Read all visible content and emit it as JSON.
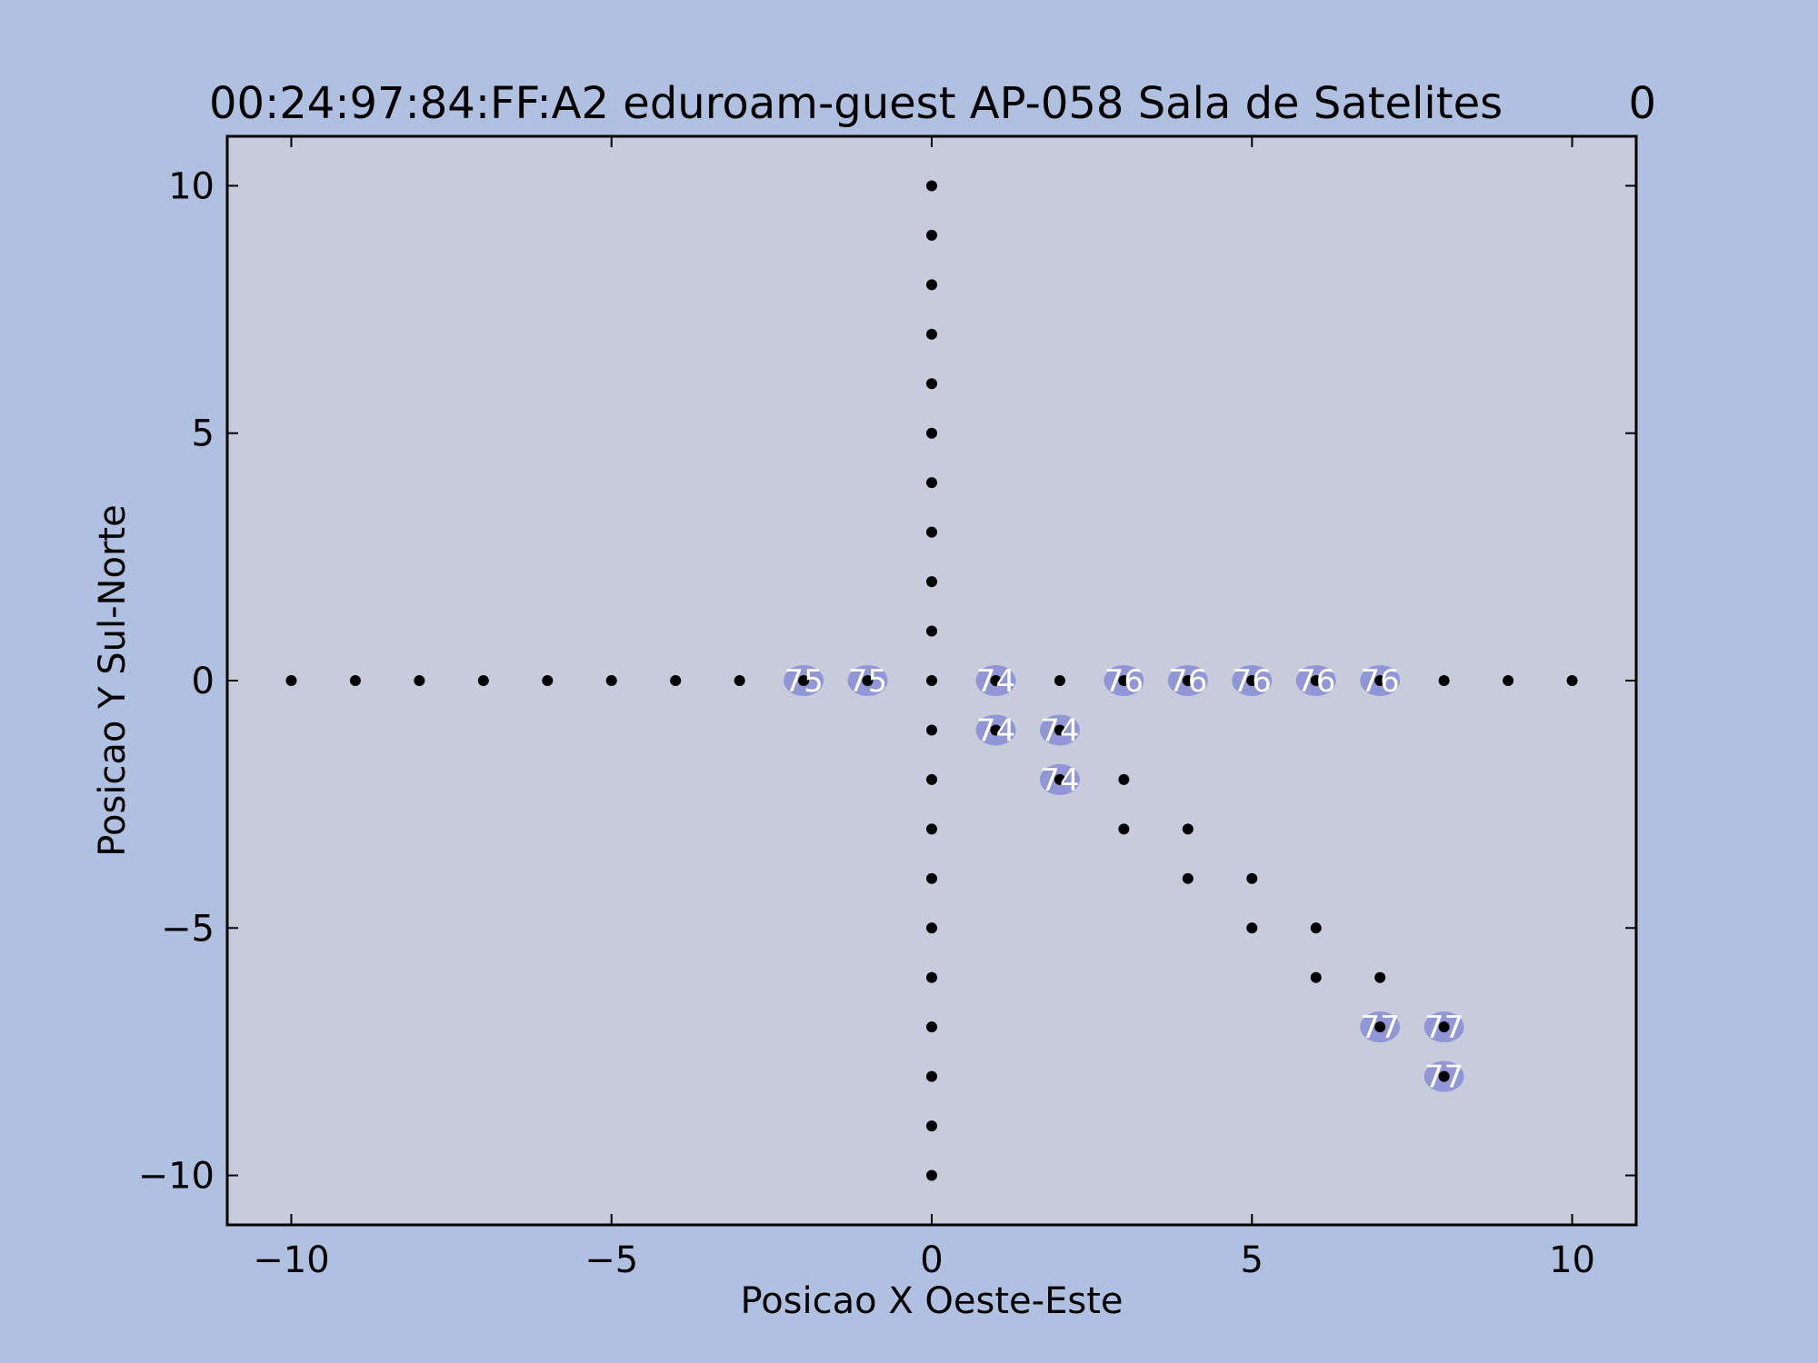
{
  "chart_data": {
    "type": "scatter",
    "title": "00:24:97:84:FF:A2 eduroam-guest AP-058 Sala de Satelites",
    "title_right": "0",
    "xlabel": "Posicao X Oeste-Este",
    "ylabel": "Posicao Y Sul-Norte",
    "xlim": [
      -11,
      11
    ],
    "ylim": [
      -11,
      11
    ],
    "xticks": [
      -10,
      -5,
      0,
      5,
      10
    ],
    "yticks": [
      -10,
      -5,
      0,
      5,
      10
    ],
    "xtick_labels": [
      "−10",
      "−5",
      "0",
      "5",
      "10"
    ],
    "ytick_labels": [
      "−10",
      "−5",
      "0",
      "5",
      "10"
    ],
    "grid": false,
    "plot_background": "#c8cbdc",
    "figure_background": "#b0c0e0",
    "point_color": "#000000",
    "highlight_color": "#7f84d6",
    "points": [
      [
        -10,
        0
      ],
      [
        -9,
        0
      ],
      [
        -8,
        0
      ],
      [
        -7,
        0
      ],
      [
        -6,
        0
      ],
      [
        -5,
        0
      ],
      [
        -4,
        0
      ],
      [
        -3,
        0
      ],
      [
        -2,
        0
      ],
      [
        -1,
        0
      ],
      [
        0,
        0
      ],
      [
        1,
        0
      ],
      [
        2,
        0
      ],
      [
        3,
        0
      ],
      [
        4,
        0
      ],
      [
        5,
        0
      ],
      [
        6,
        0
      ],
      [
        7,
        0
      ],
      [
        8,
        0
      ],
      [
        9,
        0
      ],
      [
        10,
        0
      ],
      [
        0,
        10
      ],
      [
        0,
        9
      ],
      [
        0,
        8
      ],
      [
        0,
        7
      ],
      [
        0,
        6
      ],
      [
        0,
        5
      ],
      [
        0,
        4
      ],
      [
        0,
        3
      ],
      [
        0,
        2
      ],
      [
        0,
        1
      ],
      [
        0,
        -1
      ],
      [
        0,
        -2
      ],
      [
        0,
        -3
      ],
      [
        0,
        -4
      ],
      [
        0,
        -5
      ],
      [
        0,
        -6
      ],
      [
        0,
        -7
      ],
      [
        0,
        -8
      ],
      [
        0,
        -9
      ],
      [
        0,
        -10
      ],
      [
        1,
        -1
      ],
      [
        2,
        -1
      ],
      [
        2,
        -2
      ],
      [
        3,
        -2
      ],
      [
        3,
        -3
      ],
      [
        4,
        -3
      ],
      [
        4,
        -4
      ],
      [
        5,
        -4
      ],
      [
        5,
        -5
      ],
      [
        6,
        -5
      ],
      [
        6,
        -6
      ],
      [
        7,
        -6
      ],
      [
        7,
        -7
      ],
      [
        8,
        -7
      ],
      [
        8,
        -8
      ]
    ],
    "annotations": [
      {
        "x": -2,
        "y": 0,
        "label": "75"
      },
      {
        "x": -1,
        "y": 0,
        "label": "75"
      },
      {
        "x": 1,
        "y": 0,
        "label": "74"
      },
      {
        "x": 1,
        "y": -1,
        "label": "74"
      },
      {
        "x": 2,
        "y": -1,
        "label": "74"
      },
      {
        "x": 2,
        "y": -2,
        "label": "74"
      },
      {
        "x": 3,
        "y": 0,
        "label": "76"
      },
      {
        "x": 4,
        "y": 0,
        "label": "76"
      },
      {
        "x": 5,
        "y": 0,
        "label": "76"
      },
      {
        "x": 6,
        "y": 0,
        "label": "76"
      },
      {
        "x": 7,
        "y": 0,
        "label": "76"
      },
      {
        "x": 7,
        "y": -7,
        "label": "77"
      },
      {
        "x": 8,
        "y": -7,
        "label": "77"
      },
      {
        "x": 8,
        "y": -8,
        "label": "77"
      }
    ]
  }
}
